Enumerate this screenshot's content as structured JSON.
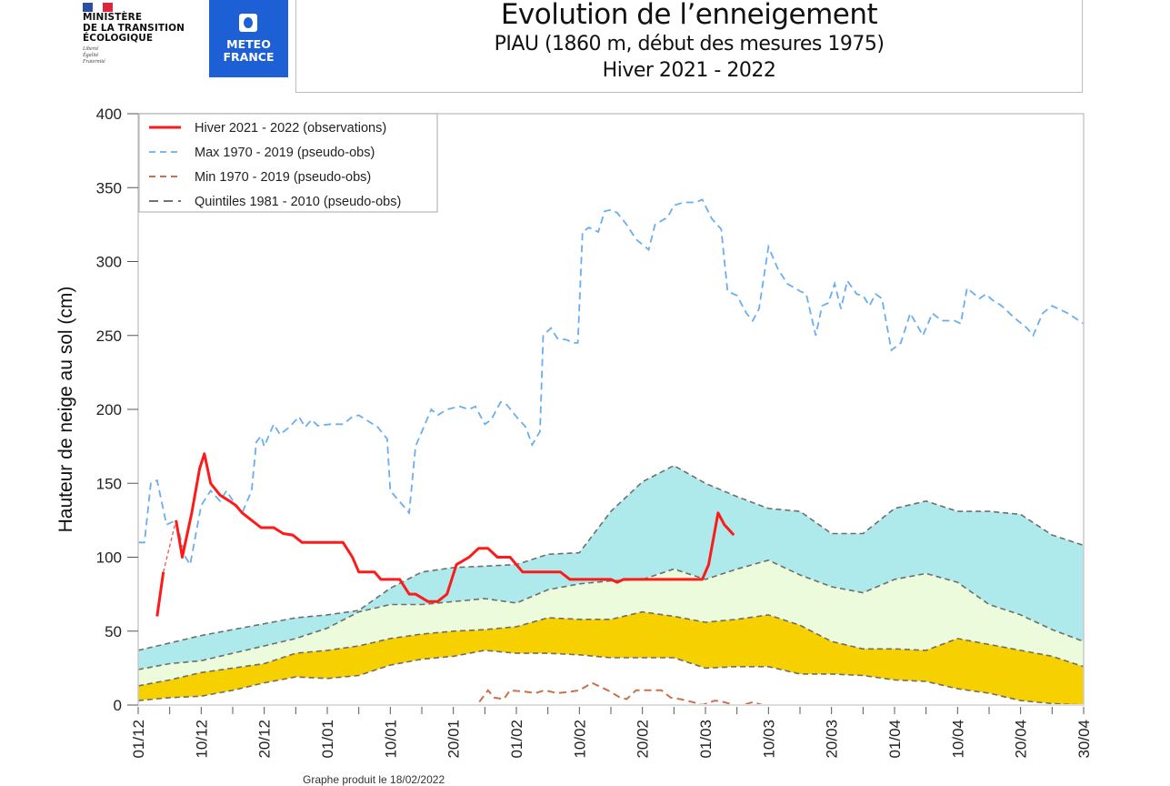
{
  "header": {
    "ministry_lines": [
      "MINISTÈRE",
      "DE LA TRANSITION",
      "ÉCOLOGIQUE"
    ],
    "motto_lines": [
      "Liberté",
      "Égalité",
      "Fraternité"
    ],
    "meteo_lines": [
      "METEO",
      "FRANCE"
    ],
    "title": "Evolution de l’enneigement",
    "subtitle": "PIAU (1860 m, début des mesures 1975)",
    "season": "Hiver 2021 - 2022"
  },
  "footer": {
    "text": "Graphe produit le 18/02/2022"
  },
  "colors": {
    "observation": "#ff1a1a",
    "max": "#6aaef0",
    "min": "#c8714a",
    "quintile_line": "#6e6e6e",
    "band_q80": "#aeeaec",
    "band_q60": "#ebfbdc",
    "band_q40": "#f7d000",
    "band_q20": "#ffffff",
    "meteo_blue": "#1d5fd4"
  },
  "chart_data": {
    "type": "line",
    "title": "Evolution de l’enneigement",
    "xlabel": "",
    "ylabel": "Hauteur de neige au sol (cm)",
    "ylim": [
      0,
      400
    ],
    "yticks": [
      0,
      50,
      100,
      150,
      200,
      250,
      300,
      350,
      400
    ],
    "x_tick_labels": [
      "01/12",
      "10/12",
      "20/12",
      "01/01",
      "10/01",
      "20/01",
      "01/02",
      "10/02",
      "20/02",
      "01/03",
      "10/03",
      "20/03",
      "01/04",
      "10/04",
      "20/04",
      "30/04"
    ],
    "x_unit_note": "x values are tick indices: 0 = 01/12, each labelled date every 2 indices, 30 = 30/04",
    "xlim": [
      0,
      30
    ],
    "grid": false,
    "legend_position": "top-left",
    "legend": [
      {
        "label": "Hiver 2021 - 2022 (observations)",
        "style": "solid",
        "series": "observations"
      },
      {
        "label": "Max 1970 - 2019 (pseudo-obs)",
        "style": "dashed",
        "series": "max"
      },
      {
        "label": "Min 1970 - 2019 (pseudo-obs)",
        "style": "dashed",
        "series": "min"
      },
      {
        "label": "Quintiles 1981 - 2010 (pseudo-obs)",
        "style": "dashed",
        "series": "quintiles"
      }
    ],
    "series": [
      {
        "name": "observations",
        "gap_dashed_between": [
          [
            0.8,
            90
          ],
          [
            1.2,
            125
          ]
        ],
        "segments": [
          [
            [
              0.6,
              60
            ],
            [
              0.8,
              90
            ]
          ],
          [
            [
              1.2,
              125
            ],
            [
              1.4,
              100
            ],
            [
              1.7,
              130
            ],
            [
              1.95,
              160
            ],
            [
              2.1,
              170
            ],
            [
              2.3,
              150
            ],
            [
              2.6,
              142
            ],
            [
              2.9,
              138
            ],
            [
              3.1,
              135
            ],
            [
              3.3,
              130
            ],
            [
              3.6,
              125
            ],
            [
              3.9,
              120
            ],
            [
              4.3,
              120
            ],
            [
              4.6,
              116
            ],
            [
              4.9,
              115
            ],
            [
              5.2,
              110
            ],
            [
              5.5,
              110
            ],
            [
              6.5,
              110
            ],
            [
              6.8,
              100
            ],
            [
              7.0,
              90
            ],
            [
              7.5,
              90
            ],
            [
              7.7,
              85
            ],
            [
              8.3,
              85
            ],
            [
              8.6,
              75
            ],
            [
              8.8,
              75
            ],
            [
              9.2,
              70
            ],
            [
              9.5,
              70
            ],
            [
              9.8,
              75
            ],
            [
              10.1,
              95
            ],
            [
              10.5,
              100
            ],
            [
              10.8,
              106
            ],
            [
              11.1,
              106
            ],
            [
              11.4,
              100
            ],
            [
              11.8,
              100
            ],
            [
              12.2,
              90
            ],
            [
              13.4,
              90
            ],
            [
              13.7,
              85
            ],
            [
              14.6,
              85
            ],
            [
              15.0,
              85
            ],
            [
              15.2,
              83
            ],
            [
              15.4,
              85
            ],
            [
              17.5,
              85
            ],
            [
              17.9,
              85
            ],
            [
              18.1,
              95
            ],
            [
              18.4,
              130
            ],
            [
              18.6,
              122
            ],
            [
              18.9,
              115
            ]
          ]
        ]
      },
      {
        "name": "max",
        "points": [
          [
            0,
            110
          ],
          [
            0.2,
            110
          ],
          [
            0.4,
            150
          ],
          [
            0.6,
            152
          ],
          [
            0.9,
            122
          ],
          [
            1.2,
            125
          ],
          [
            1.5,
            100
          ],
          [
            1.65,
            95
          ],
          [
            2.0,
            135
          ],
          [
            2.3,
            145
          ],
          [
            2.6,
            138
          ],
          [
            2.8,
            145
          ],
          [
            3.1,
            135
          ],
          [
            3.3,
            130
          ],
          [
            3.6,
            145
          ],
          [
            3.75,
            178
          ],
          [
            3.9,
            182
          ],
          [
            4.0,
            175
          ],
          [
            4.3,
            190
          ],
          [
            4.5,
            183
          ],
          [
            4.8,
            188
          ],
          [
            5.1,
            195
          ],
          [
            5.3,
            188
          ],
          [
            5.5,
            193
          ],
          [
            5.7,
            189
          ],
          [
            6.1,
            190
          ],
          [
            6.5,
            190
          ],
          [
            6.8,
            195
          ],
          [
            7.0,
            196
          ],
          [
            7.3,
            192
          ],
          [
            7.6,
            188
          ],
          [
            7.9,
            180
          ],
          [
            8.0,
            145
          ],
          [
            8.4,
            135
          ],
          [
            8.6,
            130
          ],
          [
            8.8,
            175
          ],
          [
            9.1,
            190
          ],
          [
            9.3,
            200
          ],
          [
            9.5,
            196
          ],
          [
            9.8,
            200
          ],
          [
            10.2,
            202
          ],
          [
            10.5,
            200
          ],
          [
            10.7,
            202
          ],
          [
            11.0,
            190
          ],
          [
            11.2,
            193
          ],
          [
            11.5,
            205
          ],
          [
            11.7,
            203
          ],
          [
            12.0,
            195
          ],
          [
            12.3,
            188
          ],
          [
            12.5,
            176
          ],
          [
            12.75,
            185
          ],
          [
            12.85,
            250
          ],
          [
            13.1,
            255
          ],
          [
            13.3,
            248
          ],
          [
            13.6,
            247
          ],
          [
            13.8,
            245
          ],
          [
            13.95,
            245
          ],
          [
            14.1,
            320
          ],
          [
            14.3,
            323
          ],
          [
            14.6,
            320
          ],
          [
            14.8,
            334
          ],
          [
            15.0,
            335
          ],
          [
            15.2,
            333
          ],
          [
            15.5,
            325
          ],
          [
            15.8,
            315
          ],
          [
            16.2,
            308
          ],
          [
            16.4,
            325
          ],
          [
            16.8,
            330
          ],
          [
            17.0,
            338
          ],
          [
            17.3,
            340
          ],
          [
            17.7,
            340
          ],
          [
            17.9,
            342
          ],
          [
            18.2,
            329
          ],
          [
            18.5,
            322
          ],
          [
            18.7,
            280
          ],
          [
            19.0,
            277
          ],
          [
            19.3,
            265
          ],
          [
            19.5,
            260
          ],
          [
            19.7,
            268
          ],
          [
            20.0,
            310
          ],
          [
            20.3,
            295
          ],
          [
            20.6,
            285
          ],
          [
            21.0,
            280
          ],
          [
            21.2,
            278
          ],
          [
            21.5,
            250
          ],
          [
            21.7,
            270
          ],
          [
            21.9,
            272
          ],
          [
            22.1,
            285
          ],
          [
            22.3,
            268
          ],
          [
            22.5,
            287
          ],
          [
            22.8,
            278
          ],
          [
            23.0,
            277
          ],
          [
            23.2,
            270
          ],
          [
            23.4,
            278
          ],
          [
            23.6,
            275
          ],
          [
            23.9,
            240
          ],
          [
            24.2,
            245
          ],
          [
            24.5,
            265
          ],
          [
            24.9,
            250
          ],
          [
            25.2,
            265
          ],
          [
            25.5,
            260
          ],
          [
            25.9,
            260
          ],
          [
            26.1,
            258
          ],
          [
            26.3,
            282
          ],
          [
            26.7,
            275
          ],
          [
            26.9,
            278
          ],
          [
            27.1,
            274
          ],
          [
            27.4,
            270
          ],
          [
            27.8,
            262
          ],
          [
            28.2,
            255
          ],
          [
            28.4,
            250
          ],
          [
            28.7,
            265
          ],
          [
            29.0,
            270
          ],
          [
            29.5,
            265
          ],
          [
            30,
            258
          ]
        ]
      },
      {
        "name": "min",
        "points": [
          [
            0,
            0
          ],
          [
            10.6,
            0
          ],
          [
            10.75,
            0
          ],
          [
            11.1,
            10
          ],
          [
            11.3,
            5
          ],
          [
            11.6,
            4
          ],
          [
            11.8,
            10
          ],
          [
            12.3,
            9
          ],
          [
            12.6,
            8
          ],
          [
            12.9,
            10
          ],
          [
            13.3,
            8
          ],
          [
            13.7,
            9
          ],
          [
            14.0,
            10
          ],
          [
            14.4,
            15
          ],
          [
            14.9,
            10
          ],
          [
            15.3,
            5
          ],
          [
            15.5,
            4
          ],
          [
            15.8,
            10
          ],
          [
            16.3,
            10
          ],
          [
            16.6,
            10
          ],
          [
            16.9,
            5
          ],
          [
            17.2,
            4
          ],
          [
            17.6,
            2
          ],
          [
            17.9,
            0
          ],
          [
            18.3,
            3
          ],
          [
            18.6,
            2
          ],
          [
            18.9,
            0
          ],
          [
            19.2,
            0
          ],
          [
            19.5,
            2
          ],
          [
            19.8,
            0
          ],
          [
            30,
            0
          ]
        ]
      },
      {
        "name": "q80",
        "x": [
          0,
          1,
          2,
          3,
          4,
          5,
          6,
          7,
          8,
          9,
          10,
          11,
          12,
          13,
          14,
          15,
          16,
          17,
          18,
          19,
          20,
          21,
          22,
          23,
          24,
          25,
          26,
          27,
          28,
          29,
          30
        ],
        "values": [
          37,
          42,
          47,
          51,
          55,
          59,
          61,
          64,
          79,
          90,
          93,
          94,
          95,
          102,
          103,
          131,
          151,
          162,
          150,
          141,
          133,
          131,
          116,
          116,
          133,
          138,
          131,
          131,
          129,
          115,
          108
        ]
      },
      {
        "name": "q60",
        "x": [
          0,
          1,
          2,
          3,
          4,
          5,
          6,
          7,
          8,
          9,
          10,
          11,
          12,
          13,
          14,
          15,
          16,
          17,
          18,
          19,
          20,
          21,
          22,
          23,
          24,
          25,
          26,
          27,
          28,
          29,
          30
        ],
        "values": [
          24,
          28,
          30,
          35,
          40,
          45,
          52,
          63,
          68,
          68,
          70,
          72,
          69,
          78,
          82,
          84,
          85,
          92,
          85,
          92,
          98,
          88,
          80,
          76,
          85,
          89,
          83,
          68,
          61,
          51,
          43
        ]
      },
      {
        "name": "q40",
        "x": [
          0,
          1,
          2,
          3,
          4,
          5,
          6,
          7,
          8,
          9,
          10,
          11,
          12,
          13,
          14,
          15,
          16,
          17,
          18,
          19,
          20,
          21,
          22,
          23,
          24,
          25,
          26,
          27,
          28,
          29,
          30
        ],
        "values": [
          13,
          17,
          22,
          25,
          28,
          35,
          37,
          40,
          45,
          48,
          50,
          51,
          53,
          59,
          58,
          58,
          63,
          60,
          56,
          58,
          61,
          54,
          43,
          38,
          38,
          37,
          45,
          41,
          37,
          33,
          26
        ]
      },
      {
        "name": "q20",
        "x": [
          0,
          1,
          2,
          3,
          4,
          5,
          6,
          7,
          8,
          9,
          10,
          11,
          12,
          13,
          14,
          15,
          16,
          17,
          18,
          19,
          20,
          21,
          22,
          23,
          24,
          25,
          26,
          27,
          28,
          29,
          30
        ],
        "values": [
          3,
          5,
          6,
          10,
          15,
          19,
          18,
          20,
          27,
          31,
          33,
          37,
          35,
          35,
          34,
          32,
          32,
          32,
          25,
          26,
          26,
          21,
          21,
          20,
          17,
          16,
          11,
          8,
          3,
          1,
          0
        ]
      }
    ]
  }
}
